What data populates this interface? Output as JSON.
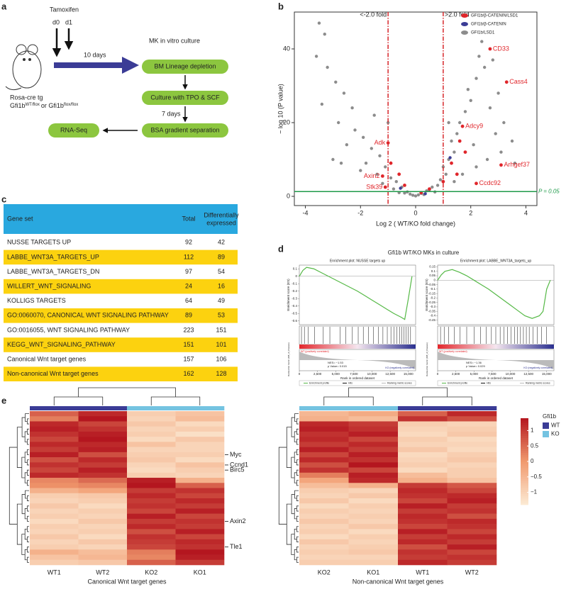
{
  "panel_labels": [
    "a",
    "b",
    "c",
    "d",
    "e"
  ],
  "workflow": {
    "drug": "Tamoxifen",
    "days": [
      "d0",
      "d1"
    ],
    "mouse": "Rosa-cre tg",
    "genotype_parts": [
      "Gfi1b",
      "WT/flox",
      "or Gfi1b",
      "flox/flox"
    ],
    "interval1": "10 days",
    "culture_label": "MK in vitro culture",
    "steps": [
      "BM Lineage depletion",
      "Culture with TPO & SCF",
      "BSA gradient separation",
      "RNA-Seq"
    ],
    "interval2": "7 days",
    "step_color": "#8cc63f",
    "arrow_color": "#3b3c96"
  },
  "table": {
    "header": [
      "Gene set",
      "Total",
      [
        "Differentially",
        "expressed"
      ]
    ],
    "header_color": "#29a8df",
    "stripe_color": "#fcd20f",
    "rows": [
      [
        "NUSSE TARGETS UP",
        92,
        42
      ],
      [
        "LABBE_WNT3A_TARGETS_UP",
        112,
        89
      ],
      [
        "LABBE_WNT3A_TARGETS_DN",
        97,
        54
      ],
      [
        "WILLERT_WNT_SIGNALING",
        24,
        16
      ],
      [
        "KOLLIGS TARGETS",
        64,
        49
      ],
      [
        "GO:0060070, CANONICAL WNT SIGNALING PATHWAY",
        89,
        53
      ],
      [
        "GO:0016055, WNT SIGNALING PATHWAY",
        223,
        151
      ],
      [
        "KEGG_WNT_SIGNALING_PATHWAY",
        151,
        101
      ],
      [
        "Canonical Wnt target genes",
        157,
        106
      ],
      [
        "Non-canonical Wnt target genes",
        162,
        128
      ]
    ]
  },
  "gsea_title": "Gfi1b WT/KO MKs in culture",
  "heatmap_legend": {
    "title": "Gfi1b",
    "groups": [
      {
        "name": "WT",
        "color": "#3b3c96"
      },
      {
        "name": "KO",
        "color": "#74c3e1"
      }
    ],
    "clim": [
      -1.4,
      1.4
    ],
    "colors": [
      "#fcebd5",
      "#f19a6e",
      "#b4161f"
    ],
    "ticks": [
      1,
      0.5,
      0,
      {
        "value": -0.5,
        "label": "−0.5"
      },
      {
        "value": -1,
        "label": "−1"
      }
    ]
  },
  "chart_data": [
    {
      "type": "scatter",
      "xlabel": "Log 2 ( WT/KO fold change)",
      "ylabel": "− log 10 (P value)",
      "xlim": [
        -4.4,
        4.4
      ],
      "ylim": [
        -2.5,
        50
      ],
      "xticks": [
        -4,
        -2,
        0,
        2,
        4
      ],
      "yticks": [
        0,
        20,
        40
      ],
      "vlines": [
        {
          "value": -1,
          "label": "<-2.0 fold"
        },
        {
          "value": 1,
          "label": ">2.0 fold"
        }
      ],
      "vline_color": "#d7262a",
      "hline": {
        "value": 1.3,
        "label": "P = 0.05"
      },
      "hline_color": "#1f9a4a",
      "series": [
        {
          "name": "GFI1b/LSD1",
          "color": "#8c8c8c",
          "x": [
            -3.5,
            -3.3,
            -3.6,
            -3.2,
            -2.9,
            -3.4,
            -2.6,
            -2.3,
            -2.8,
            -2.2,
            -1.9,
            -2.5,
            -1.6,
            -1.3,
            -1.8,
            -1.1,
            -2.0,
            -1.4,
            -0.9,
            -0.7,
            -1.2,
            -0.5,
            -0.8,
            -0.3,
            -0.6,
            -0.1,
            0,
            0.1,
            0.2,
            0.4,
            0.6,
            0.8,
            0.5,
            0.9,
            1.1,
            1.0,
            1.2,
            1.4,
            1.3,
            1.5,
            1.6,
            1.8,
            2.0,
            1.9,
            2.2,
            2.5,
            2.3,
            2.4,
            2.8,
            3.0,
            2.7,
            3.2,
            2.9,
            3.5,
            3.1,
            2.6,
            2.2,
            1.7,
            1.4,
            3.6,
            2.1,
            1.2,
            -1.0,
            -1.5,
            -3.0,
            -2.7,
            0.3,
            -0.2,
            0.7,
            -0.4
          ],
          "values": [
            47,
            44,
            38,
            35,
            31,
            25,
            28,
            24,
            20,
            18,
            16,
            14,
            13,
            11,
            9,
            8,
            7,
            6,
            5,
            4,
            3.5,
            2.5,
            2,
            1.2,
            1,
            0.3,
            0.1,
            0.4,
            0.8,
            1.5,
            2.5,
            3,
            1.8,
            4.5,
            6,
            8,
            10,
            12,
            15,
            17,
            20,
            23,
            26,
            29,
            32,
            35,
            38,
            42,
            37,
            28,
            24,
            20,
            17,
            15,
            12,
            10,
            8,
            6,
            4,
            9,
            14,
            20,
            20,
            22,
            10,
            9,
            0.5,
            0.6,
            1.2,
            0.9
          ]
        },
        {
          "name": "GFI1b/β-CATENIN",
          "color": "#3b3c96",
          "x": [
            1.25,
            -0.55,
            0.35
          ],
          "values": [
            10.5,
            2.2,
            0.7
          ]
        },
        {
          "name": "GFI1b/β-CATENIN/LSD1",
          "color": "#e0262b",
          "x": [
            2.7,
            3.3,
            1.7,
            -1.0,
            3.1,
            2.2,
            -1.2,
            -1.1,
            1.6,
            1.8,
            1.3,
            1.5,
            -0.6,
            -0.9,
            0.5,
            -0.4,
            1.0,
            0.2
          ],
          "values": [
            40,
            31,
            19,
            14.5,
            8.5,
            3.5,
            5.5,
            2.5,
            15,
            12,
            9,
            6,
            6,
            9,
            2,
            3,
            4,
            1
          ],
          "labels": [
            "CD33",
            "Cass4",
            "Adcy9",
            "Adk",
            "Arhgef37",
            "Ccdc92",
            "Axin2",
            "Stk39",
            null,
            null,
            null,
            null,
            null,
            null,
            null,
            null,
            null,
            null
          ]
        }
      ],
      "legend_order": [
        2,
        1,
        0
      ]
    },
    {
      "type": "line",
      "title": "Enrichment plot: NUSSE targets up",
      "ylabel": "Enrichment score (ES)",
      "xlabel": "Rank in ordered dataset",
      "ranking_label": "Ranked list metric (Diff_of_Classes)",
      "class_labels": [
        "WT (positively correlated)",
        "KO (negatively correlated)"
      ],
      "stats": [
        "NES= −1.53",
        "p Value= 0.015"
      ],
      "legend": [
        "Enrichment profile",
        "Hits",
        "Ranking metric scores"
      ],
      "color": "#56b947",
      "xlim": [
        0,
        16000
      ],
      "ylim": [
        -0.65,
        0.15
      ],
      "yticks": [
        0.1,
        0,
        -0.1,
        -0.2,
        -0.3,
        -0.4,
        -0.5,
        -0.6
      ],
      "xticks": [
        0,
        {
          "value": 2500,
          "label": "2,500"
        },
        {
          "value": 5000,
          "label": "5,000"
        },
        {
          "value": 7500,
          "label": "7,500"
        },
        {
          "value": 10000,
          "label": "10,000"
        },
        {
          "value": 12500,
          "label": "12,500"
        },
        {
          "value": 15000,
          "label": "15,000"
        }
      ],
      "x": [
        0,
        500,
        1000,
        2000,
        3000,
        4000,
        5000,
        6000,
        7000,
        8000,
        9000,
        10000,
        11000,
        12000,
        13000,
        14000,
        14500,
        15000,
        15500
      ],
      "values": [
        0,
        0.08,
        0.12,
        0.1,
        0.05,
        0,
        -0.05,
        -0.1,
        -0.15,
        -0.2,
        -0.26,
        -0.32,
        -0.38,
        -0.44,
        -0.5,
        -0.55,
        -0.58,
        -0.3,
        0
      ],
      "hits": [
        300,
        700,
        1200,
        2100,
        3300,
        4200,
        5600,
        6400,
        7300,
        8100,
        8800,
        9500,
        10200,
        10900,
        11500,
        12100,
        12600,
        13000,
        13400,
        13800,
        14100,
        14400,
        14700,
        15000,
        15300
      ]
    },
    {
      "type": "line",
      "title": "Enrichment plot: LABBE_WNT3A_targets_up",
      "ylabel": "Enrichment score (ES)",
      "xlabel": "Rank in ordered dataset",
      "ranking_label": "Ranked list metric (Diff_of_Classes)",
      "class_labels": [
        "WT (positively correlated)",
        "KO (negatively correlated)"
      ],
      "stats": [
        "NES= −1.36",
        "p Value= 0.029"
      ],
      "legend": [
        "Enrichment profile",
        "Hits",
        "Ranking metric scores"
      ],
      "color": "#56b947",
      "xlim": [
        0,
        16000
      ],
      "ylim": [
        -0.5,
        0.17
      ],
      "yticks": [
        0.15,
        0.1,
        0.05,
        0,
        -0.05,
        -0.1,
        -0.15,
        -0.2,
        -0.25,
        -0.3,
        -0.35,
        -0.4,
        -0.45
      ],
      "xticks": [
        0,
        {
          "value": 2500,
          "label": "2,500"
        },
        {
          "value": 5000,
          "label": "5,000"
        },
        {
          "value": 7500,
          "label": "7,500"
        },
        {
          "value": 10000,
          "label": "10,000"
        },
        {
          "value": 12500,
          "label": "12,500"
        },
        {
          "value": 15000,
          "label": "15,000"
        }
      ],
      "x": [
        0,
        500,
        1000,
        2000,
        3000,
        4000,
        5000,
        6000,
        7000,
        8000,
        9000,
        10000,
        11000,
        12000,
        13000,
        14000,
        14500,
        15000,
        15500
      ],
      "values": [
        0,
        0.06,
        0.1,
        0.12,
        0.09,
        0.05,
        0,
        -0.05,
        -0.1,
        -0.16,
        -0.22,
        -0.28,
        -0.34,
        -0.4,
        -0.43,
        -0.4,
        -0.35,
        -0.1,
        0
      ],
      "hits": [
        400,
        900,
        1500,
        2300,
        3100,
        4000,
        5000,
        5900,
        6700,
        7400,
        8000,
        8600,
        9100,
        9600,
        10100,
        10600,
        11000,
        11400,
        11800,
        12200,
        12600,
        13100,
        13700,
        14300,
        15000
      ]
    },
    {
      "type": "heatmap",
      "xlabel": "Canonical Wnt target genes",
      "columns": [
        "WT1",
        "WT2",
        "KO2",
        "KO1"
      ],
      "column_groups": [
        0,
        0,
        1,
        1
      ],
      "row_labels": [
        {
          "row": 8,
          "label": "Myc"
        },
        {
          "row": 10,
          "label": "Ccnd1"
        },
        {
          "row": 11,
          "label": "Birc5"
        },
        {
          "row": 21,
          "label": "Axin2"
        },
        {
          "row": 26,
          "label": "Tle1"
        }
      ],
      "matrix": [
        [
          0.6,
          1.2,
          -0.9,
          -0.7
        ],
        [
          0.3,
          1.4,
          -1.0,
          -0.6
        ],
        [
          1.2,
          0.9,
          -0.8,
          -1.1
        ],
        [
          1.3,
          1.1,
          -1.0,
          -0.9
        ],
        [
          1.1,
          1.3,
          -0.9,
          -1.2
        ],
        [
          0.9,
          1.4,
          -1.1,
          -0.8
        ],
        [
          1.2,
          1.2,
          -0.7,
          -1.0
        ],
        [
          1.0,
          1.3,
          -1.0,
          -1.0
        ],
        [
          1.3,
          0.8,
          -0.9,
          -0.9
        ],
        [
          0.8,
          1.2,
          -0.8,
          -1.1
        ],
        [
          1.1,
          1.0,
          -1.0,
          -0.7
        ],
        [
          0.9,
          1.3,
          -1.1,
          -0.9
        ],
        [
          1.2,
          1.1,
          -0.9,
          -1.0
        ],
        [
          0.2,
          0.5,
          1.3,
          -0.4
        ],
        [
          0.1,
          0.2,
          1.4,
          0.6
        ],
        [
          -0.4,
          -0.2,
          1.0,
          1.1
        ],
        [
          -0.9,
          -0.8,
          1.2,
          0.9
        ],
        [
          -1.0,
          -0.9,
          1.0,
          1.2
        ],
        [
          -0.8,
          -1.1,
          1.1,
          1.0
        ],
        [
          -1.0,
          -0.9,
          0.9,
          1.3
        ],
        [
          -0.9,
          -1.0,
          1.3,
          0.9
        ],
        [
          -1.1,
          -0.8,
          1.0,
          1.1
        ],
        [
          -0.9,
          -1.0,
          1.2,
          1.0
        ],
        [
          -1.0,
          -0.9,
          0.8,
          1.3
        ],
        [
          -0.8,
          -1.1,
          1.1,
          0.9
        ],
        [
          -1.0,
          -0.8,
          1.0,
          1.2
        ],
        [
          -0.9,
          -1.0,
          0.9,
          1.1
        ],
        [
          -0.4,
          -0.6,
          0.3,
          1.4
        ],
        [
          -0.7,
          -0.5,
          0.2,
          1.3
        ],
        [
          -0.9,
          -0.8,
          0.6,
          1.0
        ]
      ]
    },
    {
      "type": "heatmap",
      "xlabel": "Non-canonical Wnt target genes",
      "columns": [
        "KO2",
        "KO1",
        "WT1",
        "WT2"
      ],
      "column_groups": [
        1,
        1,
        0,
        0
      ],
      "row_labels": [],
      "matrix": [
        [
          -0.5,
          -0.3,
          0.6,
          1.2
        ],
        [
          -0.4,
          -0.6,
          1.1,
          0.8
        ],
        [
          1.2,
          1.0,
          -0.9,
          -1.0
        ],
        [
          1.3,
          1.1,
          -1.0,
          -0.9
        ],
        [
          1.1,
          1.3,
          -1.1,
          -0.8
        ],
        [
          1.2,
          0.9,
          -0.9,
          -1.1
        ],
        [
          1.0,
          1.2,
          -1.0,
          -1.0
        ],
        [
          1.3,
          1.0,
          -0.8,
          -1.1
        ],
        [
          0.9,
          1.3,
          -1.1,
          -0.9
        ],
        [
          1.2,
          1.1,
          -1.0,
          -0.8
        ],
        [
          0.8,
          1.4,
          -0.9,
          -1.0
        ],
        [
          1.1,
          0.9,
          -1.1,
          -0.9
        ],
        [
          0.3,
          1.3,
          -0.6,
          -0.9
        ],
        [
          -0.2,
          1.2,
          -0.4,
          -0.7
        ],
        [
          -0.6,
          -0.4,
          1.0,
          0.7
        ],
        [
          -0.9,
          -1.0,
          1.2,
          0.9
        ],
        [
          -1.0,
          -0.8,
          1.1,
          1.2
        ],
        [
          -0.8,
          -1.1,
          0.9,
          1.3
        ],
        [
          -1.1,
          -0.9,
          1.3,
          1.0
        ],
        [
          -0.9,
          -1.0,
          1.0,
          1.1
        ],
        [
          -1.0,
          -0.9,
          1.2,
          0.8
        ],
        [
          -0.8,
          -1.0,
          1.1,
          1.2
        ],
        [
          -1.0,
          -0.8,
          0.9,
          1.1
        ],
        [
          -0.9,
          -1.1,
          1.3,
          0.9
        ],
        [
          -1.1,
          -0.9,
          1.0,
          1.2
        ],
        [
          -0.8,
          -1.0,
          1.2,
          1.0
        ],
        [
          -1.0,
          -0.9,
          0.8,
          1.3
        ],
        [
          -0.9,
          -0.8,
          1.1,
          0.9
        ],
        [
          -1.0,
          -1.0,
          1.0,
          1.1
        ],
        [
          -0.9,
          -0.9,
          1.2,
          1.0
        ]
      ]
    }
  ]
}
